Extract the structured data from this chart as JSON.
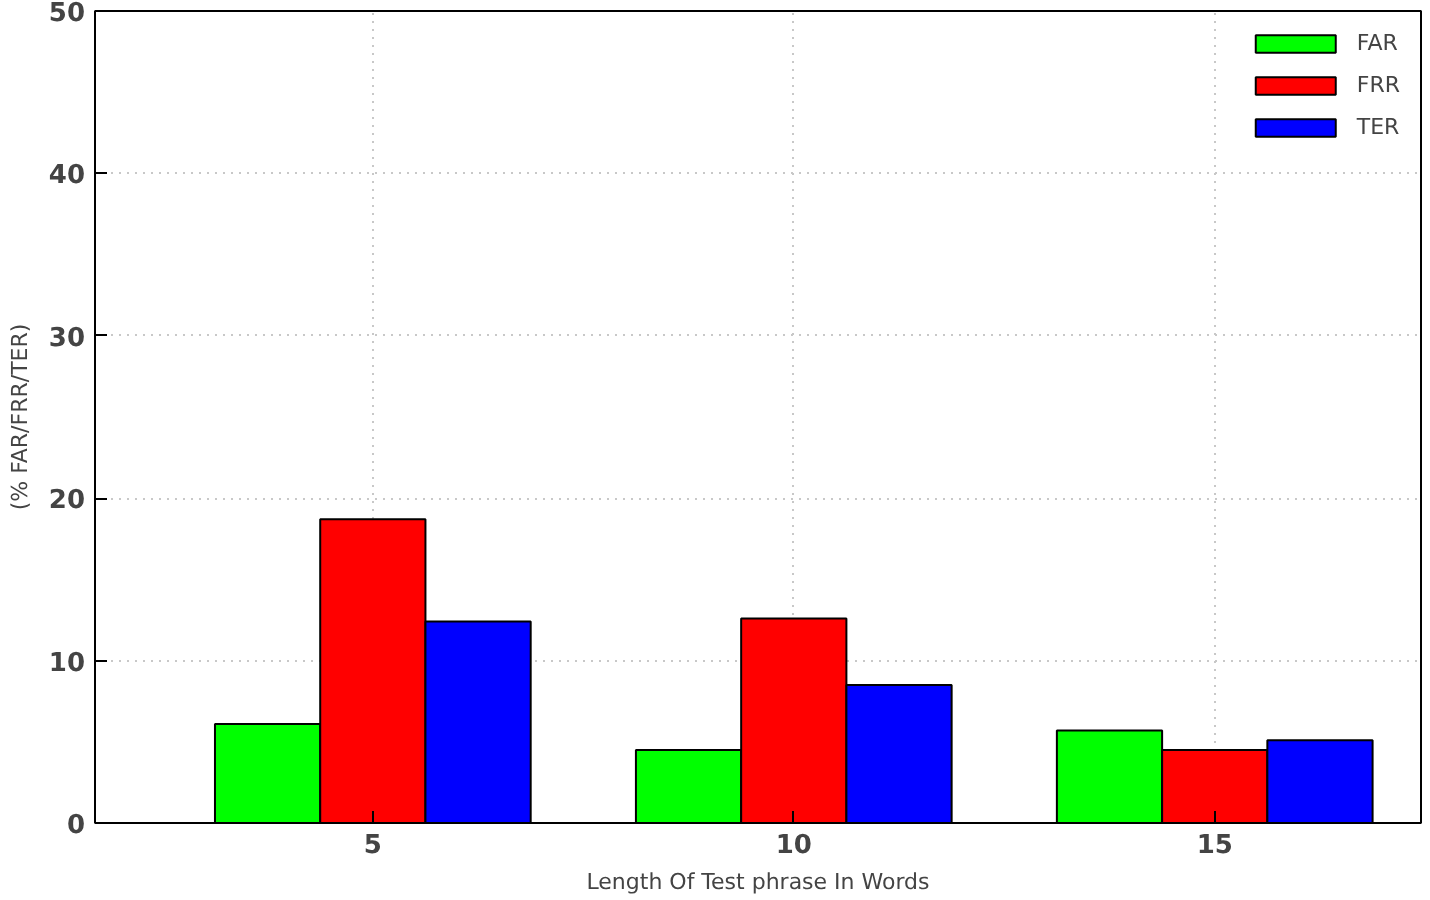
{
  "chart_data": {
    "type": "bar",
    "xlabel": "Length Of Test phrase In Words",
    "ylabel": "(% FAR/FRR/TER)",
    "categories": [
      "5",
      "10",
      "15"
    ],
    "series": [
      {
        "name": "FAR",
        "color": "#00ff00",
        "values": [
          6.1,
          4.5,
          5.7
        ]
      },
      {
        "name": "FRR",
        "color": "#ff0000",
        "values": [
          18.7,
          12.6,
          4.5
        ]
      },
      {
        "name": "TER",
        "color": "#0000ff",
        "values": [
          12.4,
          8.5,
          5.1
        ]
      }
    ],
    "ylim": [
      0,
      50
    ],
    "yticks": [
      0,
      10,
      20,
      30,
      40,
      50
    ],
    "grid": true,
    "legend": "top right"
  }
}
